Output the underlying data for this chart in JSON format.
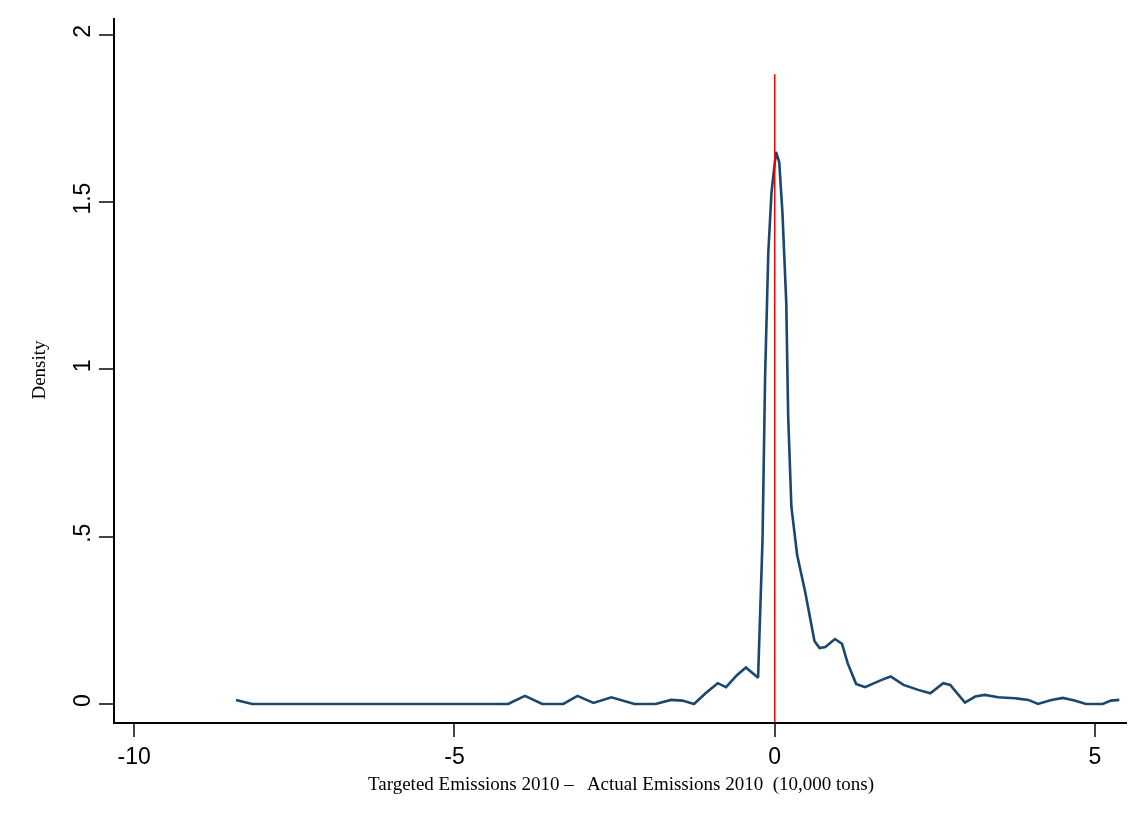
{
  "chart_data": {
    "type": "line",
    "xlabel": "Targeted Emissions 2010 –   Actual Emissions 2010  (10,000 tons)",
    "ylabel": "Density",
    "xlim": [
      -10.3,
      5.5
    ],
    "ylim": [
      -0.054,
      2.05
    ],
    "xticks": [
      -10,
      -5,
      0,
      5
    ],
    "yticks": [
      0,
      {
        "value": 0.5,
        "label": ".5"
      },
      1,
      1.5,
      2
    ],
    "marker": "none",
    "line_style": "solid",
    "ref_lines": [
      {
        "axis": "x",
        "value": 0,
        "color": "#ff0000"
      }
    ],
    "series": [
      {
        "color": "#1a476f",
        "x": [
          -8.41,
          -8.16,
          -4.16,
          -3.9,
          -3.63,
          -3.3,
          -3.08,
          -2.83,
          -2.55,
          -2.19,
          -2.12,
          -1.86,
          -1.62,
          -1.44,
          -1.26,
          -1.08,
          -0.89,
          -0.76,
          -0.59,
          -0.45,
          -0.26,
          -0.19,
          -0.15,
          -0.1,
          -0.05,
          0.02,
          0.07,
          0.12,
          0.18,
          0.21,
          0.26,
          0.35,
          0.475,
          0.62,
          0.7,
          0.79,
          0.94,
          1.05,
          1.14,
          1.27,
          1.41,
          1.67,
          1.81,
          2.01,
          2.24,
          2.43,
          2.63,
          2.74,
          2.97,
          3.13,
          3.28,
          3.49,
          3.75,
          3.96,
          4.11,
          4.32,
          4.5,
          4.68,
          4.86,
          5.12,
          5.25,
          5.38
        ],
        "values": [
          0.012,
          0,
          0,
          0.024,
          0,
          0,
          0.024,
          0.003,
          0.02,
          0,
          0,
          0,
          0.012,
          0.01,
          0,
          0.032,
          0.062,
          0.05,
          0.086,
          0.109,
          0.078,
          0.493,
          0.98,
          1.35,
          1.53,
          1.65,
          1.62,
          1.47,
          1.2,
          0.86,
          0.59,
          0.445,
          0.335,
          0.188,
          0.167,
          0.17,
          0.194,
          0.18,
          0.121,
          0.06,
          0.05,
          0.072,
          0.082,
          0.057,
          0.042,
          0.032,
          0.062,
          0.057,
          0.004,
          0.022,
          0.027,
          0.02,
          0.017,
          0.012,
          0,
          0.012,
          0.018,
          0.01,
          0,
          0,
          0.01,
          0.012
        ]
      }
    ]
  }
}
